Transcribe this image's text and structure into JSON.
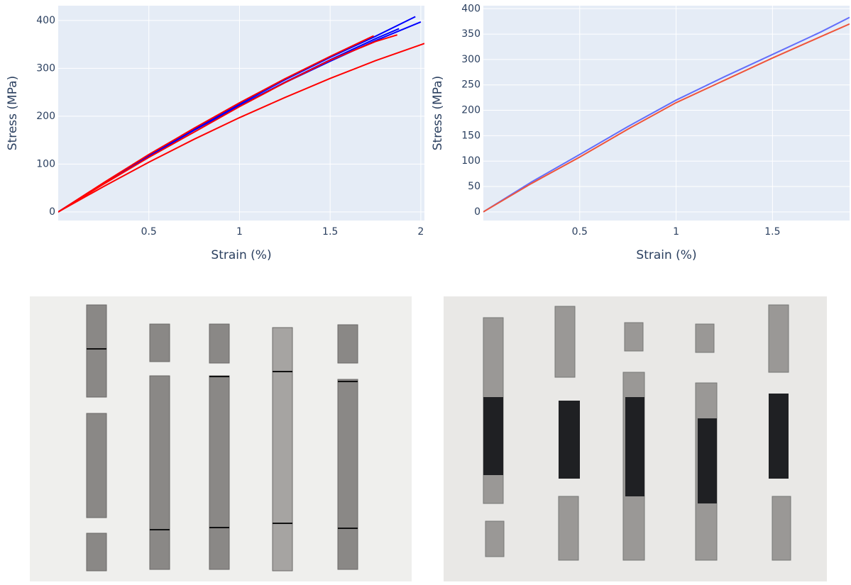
{
  "chart_data": [
    {
      "type": "line",
      "x_label": "Strain (%)",
      "y_label": "Stress (MPa)",
      "xlim": [
        0,
        2.02
      ],
      "ylim": [
        -18,
        431
      ],
      "xticks": [
        0.5,
        1,
        1.5,
        2
      ],
      "yticks": [
        0,
        100,
        200,
        300,
        400
      ],
      "grid": true,
      "series": [
        {
          "color": "#0000ff",
          "x": [
            0,
            0.25,
            0.5,
            0.75,
            1,
            1.25,
            1.5,
            1.75,
            1.97
          ],
          "values": [
            0,
            60,
            117,
            173,
            225,
            276,
            323,
            367,
            408
          ]
        },
        {
          "color": "#0000ff",
          "x": [
            0,
            0.25,
            0.5,
            0.75,
            1,
            1.25,
            1.5,
            1.75,
            2.0
          ],
          "values": [
            0,
            60,
            117,
            171,
            222,
            270,
            315,
            358,
            397
          ]
        },
        {
          "color": "#0000ff",
          "x": [
            0,
            0.25,
            0.5,
            0.75,
            1,
            1.25,
            1.5,
            1.75,
            1.88
          ],
          "values": [
            0,
            60,
            116,
            171,
            222,
            271,
            318,
            362,
            383
          ]
        },
        {
          "color": "#ff0000",
          "x": [
            0,
            0.25,
            0.5,
            0.75,
            1,
            1.25,
            1.5,
            1.74
          ],
          "values": [
            0,
            61,
            120,
            175,
            228,
            278,
            325,
            368
          ]
        },
        {
          "color": "#ff0000",
          "x": [
            0,
            0.25,
            0.5,
            0.75,
            1,
            1.25,
            1.5,
            1.75,
            1.87
          ],
          "values": [
            0,
            58,
            114,
            167,
            220,
            270,
            317,
            356,
            370
          ]
        },
        {
          "color": "#ff0000",
          "x": [
            0,
            0.25,
            0.5,
            0.75,
            1,
            1.25,
            1.5,
            1.75,
            2.02
          ],
          "values": [
            0,
            53,
            104,
            152,
            197,
            239,
            279,
            316,
            352
          ]
        }
      ]
    },
    {
      "type": "line",
      "x_label": "Strain (%)",
      "y_label": "Stress (MPa)",
      "xlim": [
        0,
        1.9
      ],
      "ylim": [
        -17,
        406
      ],
      "xticks": [
        0.5,
        1,
        1.5
      ],
      "yticks": [
        0,
        50,
        100,
        150,
        200,
        250,
        300,
        350,
        400
      ],
      "grid": true,
      "series": [
        {
          "color": "#636efa",
          "x": [
            0,
            0.25,
            0.5,
            0.75,
            1,
            1.25,
            1.5,
            1.75,
            1.9
          ],
          "values": [
            0,
            59,
            113,
            168,
            220,
            266,
            310,
            354,
            383
          ]
        },
        {
          "color": "#ef553b",
          "x": [
            0,
            0.25,
            0.5,
            0.75,
            1,
            1.25,
            1.5,
            1.75,
            1.9
          ],
          "values": [
            0,
            56,
            108,
            163,
            215,
            259,
            303,
            345,
            370
          ]
        }
      ]
    }
  ]
}
